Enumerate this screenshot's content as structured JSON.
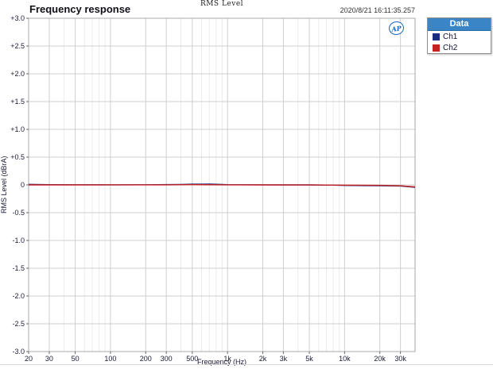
{
  "window": {
    "top_label": "RMS Level",
    "title": "Frequency response",
    "timestamp": "2020/8/21 16:11:35.257"
  },
  "logo": {
    "text": "AP",
    "color": "#1565c0"
  },
  "legend": {
    "header": "Data",
    "header_bg": "#3a85c6",
    "items": [
      {
        "label": "Ch1",
        "color": "#1b2d7e"
      },
      {
        "label": "Ch2",
        "color": "#c62222"
      }
    ]
  },
  "chart_data": {
    "type": "line",
    "title": "Frequency response",
    "xlabel": "Frequency (Hz)",
    "ylabel": "RMS Level (dBrA)",
    "x_scale": "log",
    "xlim": [
      20,
      40000
    ],
    "ylim": [
      -3,
      3
    ],
    "grid": true,
    "legend_position": "top-right-outside",
    "y_ticks": [
      {
        "v": 3.0,
        "label": "+3.0"
      },
      {
        "v": 2.5,
        "label": "+2.5"
      },
      {
        "v": 2.0,
        "label": "+2.0"
      },
      {
        "v": 1.5,
        "label": "+1.5"
      },
      {
        "v": 1.0,
        "label": "+1.0"
      },
      {
        "v": 0.5,
        "label": "+0.5"
      },
      {
        "v": 0.0,
        "label": "0"
      },
      {
        "v": -0.5,
        "label": "-0.5"
      },
      {
        "v": -1.0,
        "label": "-1.0"
      },
      {
        "v": -1.5,
        "label": "-1.5"
      },
      {
        "v": -2.0,
        "label": "-2.0"
      },
      {
        "v": -2.5,
        "label": "-2.5"
      },
      {
        "v": -3.0,
        "label": "-3.0"
      }
    ],
    "x_ticks": [
      {
        "f": 20,
        "label": "20"
      },
      {
        "f": 30,
        "label": "30"
      },
      {
        "f": 50,
        "label": "50"
      },
      {
        "f": 100,
        "label": "100"
      },
      {
        "f": 200,
        "label": "200"
      },
      {
        "f": 300,
        "label": "300"
      },
      {
        "f": 500,
        "label": "500"
      },
      {
        "f": 1000,
        "label": "1k"
      },
      {
        "f": 2000,
        "label": "2k"
      },
      {
        "f": 3000,
        "label": "3k"
      },
      {
        "f": 5000,
        "label": "5k"
      },
      {
        "f": 10000,
        "label": "10k"
      },
      {
        "f": 20000,
        "label": "20k"
      },
      {
        "f": 30000,
        "label": "30k"
      }
    ],
    "x_minor_grid": [
      40,
      60,
      70,
      80,
      90,
      400,
      600,
      700,
      800,
      900,
      4000,
      6000,
      7000,
      8000,
      9000
    ],
    "series": [
      {
        "name": "Ch1",
        "color": "#1b2d7e",
        "points": [
          [
            20,
            0.01
          ],
          [
            30,
            0.005
          ],
          [
            50,
            0.003
          ],
          [
            100,
            0.002
          ],
          [
            200,
            0.003
          ],
          [
            400,
            0.008
          ],
          [
            500,
            0.013
          ],
          [
            700,
            0.014
          ],
          [
            900,
            0.008
          ],
          [
            1000,
            0.005
          ],
          [
            2000,
            0.002
          ],
          [
            3000,
            0.0
          ],
          [
            5000,
            0.0
          ],
          [
            8000,
            -0.005
          ],
          [
            10000,
            -0.01
          ],
          [
            15000,
            -0.013
          ],
          [
            20000,
            -0.015
          ],
          [
            30000,
            -0.02
          ],
          [
            40000,
            -0.045
          ]
        ]
      },
      {
        "name": "Ch2",
        "color": "#c62222",
        "points": [
          [
            20,
            0.0
          ],
          [
            50,
            0.0
          ],
          [
            100,
            0.001
          ],
          [
            300,
            0.002
          ],
          [
            500,
            0.004
          ],
          [
            1000,
            0.002
          ],
          [
            2000,
            0.0
          ],
          [
            5000,
            -0.002
          ],
          [
            10000,
            -0.004
          ],
          [
            20000,
            -0.008
          ],
          [
            30000,
            -0.015
          ],
          [
            40000,
            -0.035
          ]
        ]
      }
    ],
    "plot_colors": {
      "border": "#a8a8a8",
      "grid_major": "#cfcfcf",
      "grid_minor": "#ebebeb",
      "tick": "#666666",
      "tick_label": "#1a1a3a"
    }
  }
}
